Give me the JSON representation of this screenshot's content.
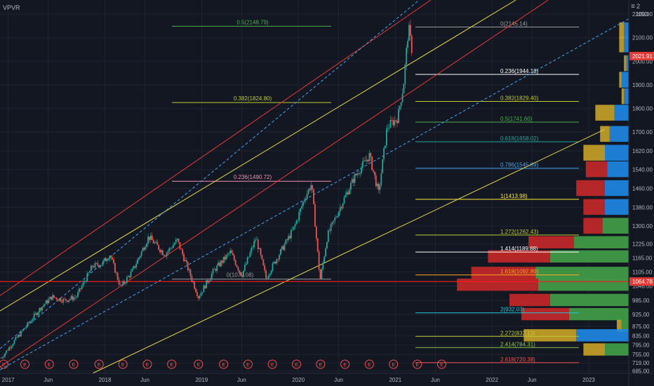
{
  "header": {
    "indicator_label": "VPVR",
    "scale_mode": "2",
    "currency": "USD",
    "menu_icon": "hamburger-menu-icon"
  },
  "colors": {
    "background": "#131722",
    "grid": "#1f2430",
    "axis_text": "#b2b5be",
    "candle_up": "#26a69a",
    "candle_down": "#ef5350",
    "channel_red": "#e53935",
    "channel_yellow": "#e6d84a",
    "channel_blue_dashed": "#42a5f5",
    "price_line": "#ff1a1a",
    "vp_up": "#43a047",
    "vp_down": "#c62828",
    "vp_up_alt": "#1e88e5",
    "vp_down_alt": "#c9a227"
  },
  "chart_data": {
    "type": "candlestick",
    "symbol": "",
    "xlim": [
      "2016-12-01",
      "2023-06-01"
    ],
    "ylim": [
      675,
      2260
    ],
    "x_ticks": [
      "2017",
      "Jun",
      "2018",
      "Jun",
      "2019",
      "Jun",
      "2020",
      "Jun",
      "2021",
      "Jun",
      "2022",
      "Jun",
      "2023"
    ],
    "y_ticks": [
      "2200.00",
      "2100.00",
      "2000.00",
      "1900.00",
      "1800.00",
      "1700.00",
      "1620.00",
      "1540.00",
      "1460.00",
      "1380.00",
      "1300.00",
      "1225.00",
      "1165.00",
      "1105.00",
      "1046.00",
      "985.00",
      "925.00",
      "875.00",
      "835.00",
      "795.00",
      "755.00",
      "719.00",
      "685.00"
    ],
    "last_price": {
      "value": 2021.91,
      "label": "2021.91"
    },
    "horizontal_line": {
      "value": 1064.78,
      "label": "1064.78"
    },
    "price_path": [
      {
        "date": "2016-12-05",
        "price": 740
      },
      {
        "date": "2017-01-15",
        "price": 800
      },
      {
        "date": "2017-03-10",
        "price": 875
      },
      {
        "date": "2017-05-01",
        "price": 950
      },
      {
        "date": "2017-06-15",
        "price": 1000
      },
      {
        "date": "2017-08-01",
        "price": 985
      },
      {
        "date": "2017-09-15",
        "price": 1000
      },
      {
        "date": "2017-11-15",
        "price": 1130
      },
      {
        "date": "2017-12-20",
        "price": 1140
      },
      {
        "date": "2018-01-20",
        "price": 1180
      },
      {
        "date": "2018-03-01",
        "price": 1040
      },
      {
        "date": "2018-04-15",
        "price": 1110
      },
      {
        "date": "2018-06-15",
        "price": 1255
      },
      {
        "date": "2018-08-15",
        "price": 1180
      },
      {
        "date": "2018-10-01",
        "price": 1240
      },
      {
        "date": "2018-12-20",
        "price": 1000
      },
      {
        "date": "2019-02-15",
        "price": 1110
      },
      {
        "date": "2019-04-20",
        "price": 1190
      },
      {
        "date": "2019-06-01",
        "price": 1090
      },
      {
        "date": "2019-07-25",
        "price": 1250
      },
      {
        "date": "2019-09-01",
        "price": 1080
      },
      {
        "date": "2019-10-15",
        "price": 1170
      },
      {
        "date": "2019-12-15",
        "price": 1290
      },
      {
        "date": "2020-01-25",
        "price": 1420
      },
      {
        "date": "2020-02-20",
        "price": 1480
      },
      {
        "date": "2020-03-23",
        "price": 1070
      },
      {
        "date": "2020-04-20",
        "price": 1260
      },
      {
        "date": "2020-06-15",
        "price": 1400
      },
      {
        "date": "2020-08-01",
        "price": 1510
      },
      {
        "date": "2020-09-25",
        "price": 1600
      },
      {
        "date": "2020-10-30",
        "price": 1440
      },
      {
        "date": "2020-12-01",
        "price": 1720
      },
      {
        "date": "2021-01-10",
        "price": 1760
      },
      {
        "date": "2021-02-01",
        "price": 1900
      },
      {
        "date": "2021-02-20",
        "price": 2145
      },
      {
        "date": "2021-03-08",
        "price": 2022
      }
    ],
    "volume_profile": {
      "rows": [
        {
          "price": 2130,
          "up": 0.2,
          "down": 0.2
        },
        {
          "price": 2070,
          "up": 0.2,
          "down": 0.2
        },
        {
          "price": 1990,
          "up": 0.1,
          "down": 0.1
        },
        {
          "price": 1920,
          "up": 0.3,
          "down": 0.1
        },
        {
          "price": 1850,
          "up": 0.2,
          "down": 0.1
        },
        {
          "price": 1780,
          "up": 0.6,
          "down": 0.8
        },
        {
          "price": 1690,
          "up": 0.8,
          "down": 0.4
        },
        {
          "price": 1610,
          "up": 1.0,
          "down": 0.9
        },
        {
          "price": 1540,
          "up": 0.9,
          "down": 0.9
        },
        {
          "price": 1460,
          "up": 1.0,
          "down": 1.2
        },
        {
          "price": 1380,
          "up": 1.0,
          "down": 0.9
        },
        {
          "price": 1300,
          "up": 1.1,
          "down": 0.8
        },
        {
          "price": 1230,
          "up": 2.3,
          "down": 1.9
        },
        {
          "price": 1170,
          "up": 3.3,
          "down": 2.6
        },
        {
          "price": 1100,
          "up": 3.9,
          "down": 2.7
        },
        {
          "price": 1050,
          "up": 3.8,
          "down": 3.4
        },
        {
          "price": 985,
          "up": 3.3,
          "down": 1.7
        },
        {
          "price": 925,
          "up": 2.5,
          "down": 2.0
        },
        {
          "price": 875,
          "up": 0.3,
          "down": 0.2
        },
        {
          "price": 835,
          "up": 2.2,
          "down": 2.2
        },
        {
          "price": 775,
          "up": 1.0,
          "down": 0.9
        }
      ]
    },
    "fib_retracement_left": {
      "levels": [
        {
          "label": "0.5(2148.79)",
          "value": 2148.79,
          "color": "#4caf50"
        },
        {
          "label": "0.382(1824.80)",
          "value": 1824.8,
          "color": "#c0ca33"
        },
        {
          "label": "0.236(1490.72)",
          "value": 1490.72,
          "color": "#f48fb1"
        },
        {
          "label": "0(1075.08)",
          "value": 1075.08,
          "color": "#9e9e9e"
        }
      ]
    },
    "fib_extension_right": {
      "levels": [
        {
          "label": "0(2145.14)",
          "value": 2145.14,
          "color": "#9e9e9e"
        },
        {
          "label": "0.236(1944.18)",
          "value": 1944.18,
          "color": "#ffffff"
        },
        {
          "label": "0.382(1829.40)",
          "value": 1829.4,
          "color": "#c0ca33"
        },
        {
          "label": "0.5(1741.60)",
          "value": 1741.6,
          "color": "#4caf50"
        },
        {
          "label": "0.618(1658.02)",
          "value": 1658.02,
          "color": "#26a69a"
        },
        {
          "label": "0.786(1545.89)",
          "value": 1545.89,
          "color": "#42a5f5"
        },
        {
          "label": "1(1413.98)",
          "value": 1413.98,
          "color": "#ffeb3b"
        },
        {
          "label": "1.272(1262.43)",
          "value": 1262.43,
          "color": "#c0ca33"
        },
        {
          "label": "1.414(1189.88)",
          "value": 1189.88,
          "color": "#ffffff"
        },
        {
          "label": "1.618(1092.89)",
          "value": 1092.89,
          "color": "#ffa726"
        },
        {
          "label": "2(932.03)",
          "value": 932.03,
          "color": "#26c6da"
        },
        {
          "label": "2.272(832.13)",
          "value": 832.13,
          "color": "#c0ca33"
        },
        {
          "label": "2.414(784.31)",
          "value": 784.31,
          "color": "#8bc34a"
        },
        {
          "label": "2.618(720.38)",
          "value": 720.38,
          "color": "#ef5350"
        }
      ]
    },
    "channels": [
      {
        "name": "red-upper",
        "color": "#e53935",
        "style": "solid",
        "points": [
          {
            "date": "2016-12-01",
            "price": 1005
          },
          {
            "date": "2021-05-15",
            "price": 2260
          }
        ]
      },
      {
        "name": "red-lower",
        "color": "#e53935",
        "style": "solid",
        "points": [
          {
            "date": "2016-12-01",
            "price": 702
          },
          {
            "date": "2022-08-01",
            "price": 2260
          }
        ]
      },
      {
        "name": "yellow-upper",
        "color": "#e6d84a",
        "style": "solid",
        "points": [
          {
            "date": "2016-12-01",
            "price": 940
          },
          {
            "date": "2022-04-01",
            "price": 2260
          }
        ]
      },
      {
        "name": "yellow-lower",
        "color": "#e6d84a",
        "style": "solid",
        "points": [
          {
            "date": "2017-11-15",
            "price": 675
          },
          {
            "date": "2023-03-01",
            "price": 1710
          }
        ]
      },
      {
        "name": "blue-upper",
        "color": "#42a5f5",
        "style": "dashed",
        "points": [
          {
            "date": "2016-12-01",
            "price": 780
          },
          {
            "date": "2021-04-01",
            "price": 2260
          }
        ]
      },
      {
        "name": "blue-lower",
        "color": "#42a5f5",
        "style": "dashed",
        "points": [
          {
            "date": "2016-12-01",
            "price": 690
          },
          {
            "date": "2023-06-01",
            "price": 2180
          }
        ]
      }
    ],
    "earnings_markers": {
      "label": "E",
      "dates": [
        "2016-12-15",
        "2017-03-05",
        "2017-06-05",
        "2017-09-05",
        "2017-12-10",
        "2018-03-10",
        "2018-06-10",
        "2018-09-10",
        "2018-12-20",
        "2019-03-25",
        "2019-06-25",
        "2019-09-25",
        "2019-12-25",
        "2020-03-25",
        "2020-06-25",
        "2020-09-25",
        "2020-12-25",
        "2021-03-25",
        "2021-06-25"
      ]
    }
  }
}
